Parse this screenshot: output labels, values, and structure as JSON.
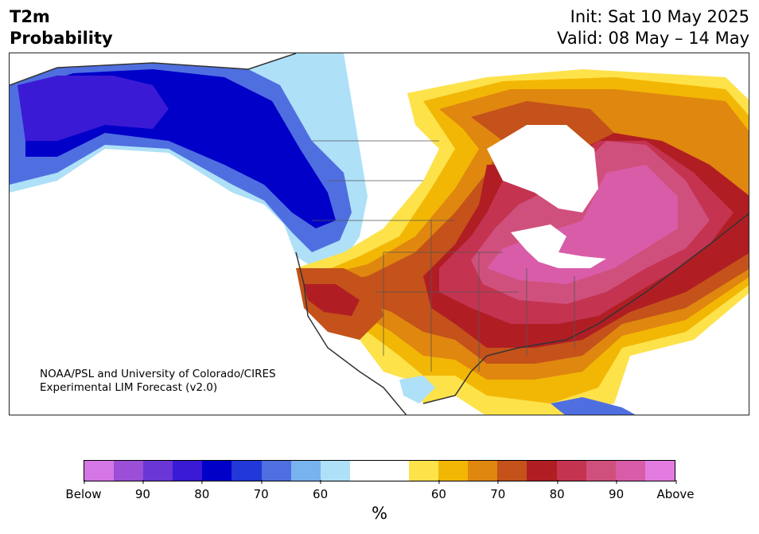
{
  "header": {
    "title_line1": "T2m",
    "title_line2": "Probability",
    "init": "Init: Sat 10 May 2025",
    "valid": "Valid: 08 May – 14 May"
  },
  "map": {
    "credit_line1": "NOAA/PSL and University of Colorado/CIRES",
    "credit_line2": "Experimental LIM Forecast (v2.0)"
  },
  "colorbar": {
    "colors": [
      "#d576e6",
      "#9a4fd6",
      "#6a36d6",
      "#3a1ad4",
      "#0000c8",
      "#2238d8",
      "#4f6fe0",
      "#78b2ef",
      "#aee0f8",
      "#ffffff",
      "#ffffff",
      "#fde24a",
      "#f2b705",
      "#e0870f",
      "#c4521a",
      "#b01e24",
      "#c43350",
      "#d0507d",
      "#d85ca8",
      "#e37be0"
    ],
    "tick_labels": [
      "Below",
      "90",
      "80",
      "70",
      "60",
      "60",
      "70",
      "80",
      "90",
      "Above"
    ],
    "unit": "%"
  }
}
